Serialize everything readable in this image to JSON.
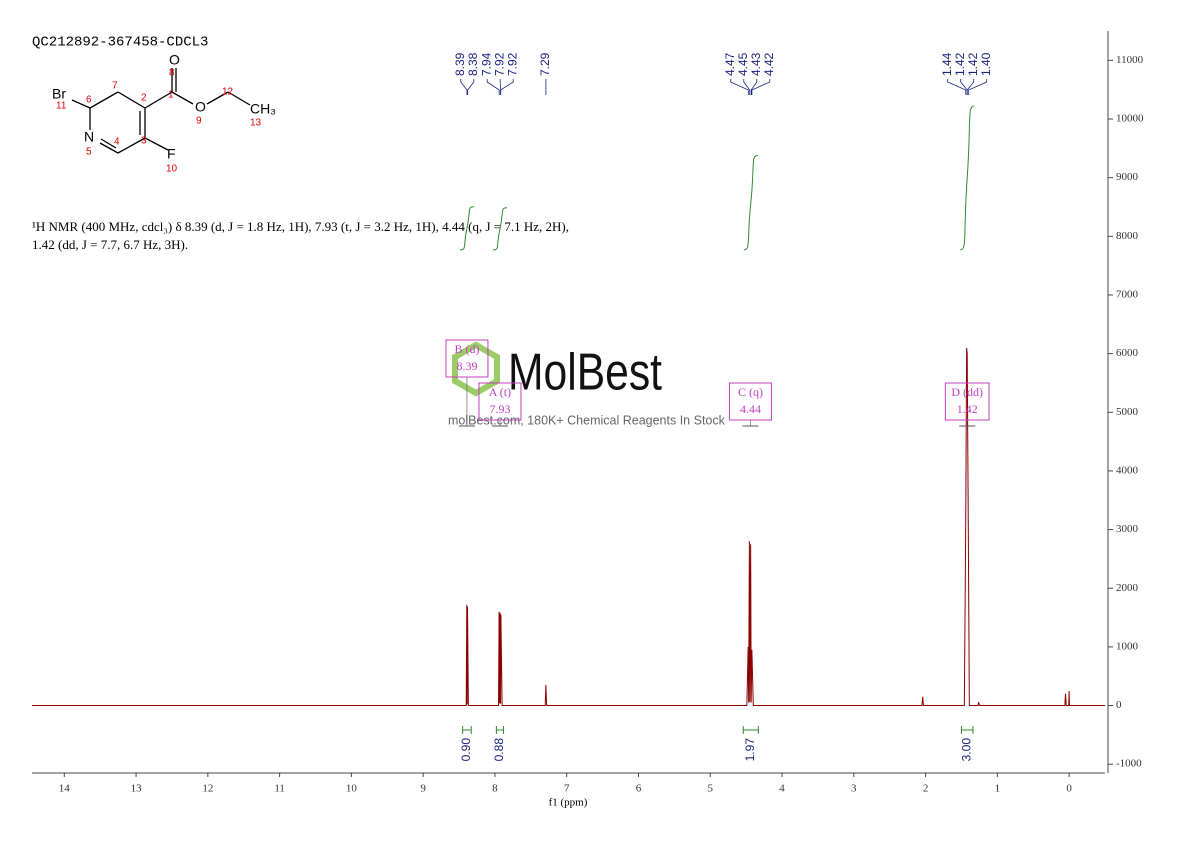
{
  "chart_data": {
    "type": "line",
    "title": "QC212892-367458-CDCL3",
    "description": [
      "¹H NMR (400 MHz, cdcl₃) δ 8.39 (d, J = 1.8 Hz, 1H), 7.93 (t, J = 3.2 Hz, 1H), 4.44 (q, J = 7.1 Hz, 2H),",
      "1.42 (dd, J = 7.7, 6.7 Hz, 3H)."
    ],
    "xlabel": "f1 (ppm)",
    "color": "#8b0000",
    "x": [
      14.45,
      8.4,
      8.392,
      8.387,
      8.382,
      8.37,
      7.95,
      7.942,
      7.935,
      7.928,
      7.922,
      7.917,
      7.9,
      7.3,
      7.29,
      7.28,
      4.49,
      4.472,
      4.465,
      4.455,
      4.448,
      4.437,
      4.43,
      4.42,
      4.4,
      2.05,
      2.04,
      2.03,
      1.46,
      1.44,
      1.428,
      1.42,
      1.405,
      1.39,
      1.27,
      1.26,
      1.25,
      0.06,
      0.05,
      0.04,
      0.005,
      0.0,
      -0.005,
      -0.5
    ],
    "values": [
      0,
      0,
      1720,
      20,
      1680,
      0,
      0,
      1600,
      40,
      1580,
      30,
      1550,
      0,
      0,
      350,
      0,
      0,
      1000,
      50,
      2800,
      60,
      2750,
      50,
      950,
      0,
      0,
      150,
      0,
      0,
      3200,
      6100,
      6000,
      3100,
      0,
      0,
      60,
      0,
      0,
      200,
      0,
      0,
      250,
      0,
      0
    ],
    "xlim": [
      14.45,
      -0.5
    ],
    "xticks": [
      14,
      13,
      12,
      11,
      10,
      9,
      8,
      7,
      6,
      5,
      4,
      3,
      2,
      1,
      0
    ],
    "ylim": [
      -1150,
      11500
    ],
    "yticks": [
      -1000,
      0,
      1000,
      2000,
      3000,
      4000,
      5000,
      6000,
      7000,
      8000,
      9000,
      10000,
      11000
    ],
    "grid": false,
    "peak_labels": [
      8.39,
      8.38,
      7.94,
      7.92,
      7.92,
      7.29,
      4.47,
      4.45,
      4.43,
      4.42,
      1.44,
      1.42,
      1.42,
      {
        "value": 1.4,
        "label": "1.40"
      }
    ],
    "integrals": [
      {
        "from": 8.45,
        "to": 8.33,
        "area": {
          "value": 0.9,
          "label": "0.90"
        }
      },
      {
        "from": 7.98,
        "to": 7.88,
        "area": 0.88
      },
      {
        "from": 4.54,
        "to": 4.33,
        "area": 1.97
      },
      {
        "from": 1.5,
        "to": 1.34,
        "area": {
          "value": 3,
          "label": "3.00"
        }
      }
    ],
    "multiplets": [
      {
        "label": "B (d)",
        "shift": 8.39
      },
      {
        "label": "A (t)",
        "shift": 7.93
      },
      {
        "label": "C (q)",
        "shift": 4.44
      },
      {
        "label": "D (dd)",
        "shift": 1.42
      }
    ]
  },
  "structure": {
    "atoms": [
      "Br",
      "N",
      "O",
      "O",
      "F",
      "CH₃"
    ],
    "numbers": [
      "11",
      "6",
      "7",
      "2",
      "1",
      "8",
      "9",
      "12",
      "13",
      "5",
      "4",
      "3",
      "10"
    ]
  },
  "watermark": {
    "logo": "MolBest",
    "tagline": "molBest.com, 180K+ Chemical Reagents In Stock"
  }
}
